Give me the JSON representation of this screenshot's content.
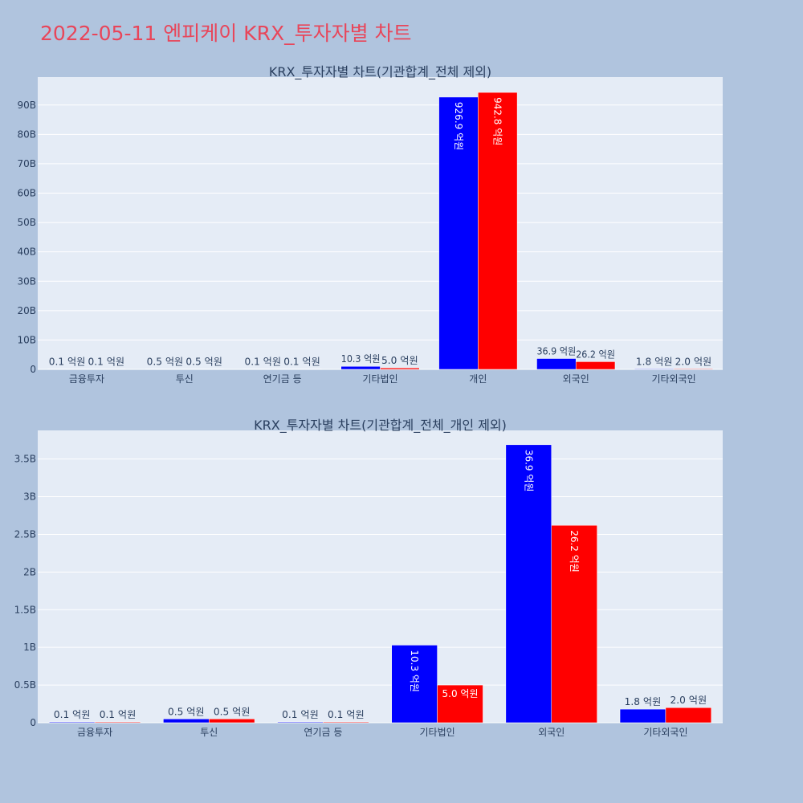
{
  "title": "2022-05-11 엔피케이 KRX_투자자별 차트",
  "colors": {
    "series1": "#0000ff",
    "series2": "#ff0000",
    "plot_bg": "#e5ecf6",
    "page_bg": "#b0c4de",
    "title": "#e8465a"
  },
  "chart_data": [
    {
      "type": "bar",
      "title": "KRX_투자자별 차트(기관합계_전체 제외)",
      "categories": [
        "금융투자",
        "투신",
        "연기금 등",
        "기타법인",
        "개인",
        "외국인",
        "기타외국인"
      ],
      "yticks": [
        0,
        10,
        20,
        30,
        40,
        50,
        60,
        70,
        80,
        90
      ],
      "ytick_labels": [
        "0",
        "10B",
        "20B",
        "30B",
        "40B",
        "50B",
        "60B",
        "70B",
        "80B",
        "90B"
      ],
      "ylim": [
        0,
        99.5
      ],
      "grid": true,
      "series": [
        {
          "values": [
            0.01,
            0.05,
            0.01,
            1.03,
            92.69,
            3.69,
            0.18
          ],
          "labels": [
            "0.1 억원",
            "0.5 억원",
            "0.1 억원",
            "10.3 억원",
            "926.9 억원",
            "36.9 억원",
            "1.8 억원"
          ]
        },
        {
          "values": [
            0.01,
            0.05,
            0.01,
            0.5,
            94.28,
            2.62,
            0.2
          ],
          "labels": [
            "0.1 억원",
            "0.5 억원",
            "0.1 억원",
            "5.0 억원",
            "942.8 억원",
            "26.2 억원",
            "2.0 억원"
          ]
        }
      ]
    },
    {
      "type": "bar",
      "title": "KRX_투자자별 차트(기관합계_전체_개인 제외)",
      "categories": [
        "금융투자",
        "투신",
        "연기금 등",
        "기타법인",
        "외국인",
        "기타외국인"
      ],
      "yticks": [
        0,
        0.5,
        1,
        1.5,
        2,
        2.5,
        3,
        3.5
      ],
      "ytick_labels": [
        "0",
        "0.5B",
        "1B",
        "1.5B",
        "2B",
        "2.5B",
        "3B",
        "3.5B"
      ],
      "ylim": [
        0,
        3.88
      ],
      "grid": true,
      "series": [
        {
          "values": [
            0.01,
            0.05,
            0.01,
            1.03,
            3.69,
            0.18
          ],
          "labels": [
            "0.1 억원",
            "0.5 억원",
            "0.1 억원",
            "10.3 억원",
            "36.9 억원",
            "1.8 억원"
          ]
        },
        {
          "values": [
            0.01,
            0.05,
            0.01,
            0.5,
            2.62,
            0.2
          ],
          "labels": [
            "0.1 억원",
            "0.5 억원",
            "0.1 억원",
            "5.0 억원",
            "26.2 억원",
            "2.0 억원"
          ]
        }
      ]
    }
  ]
}
